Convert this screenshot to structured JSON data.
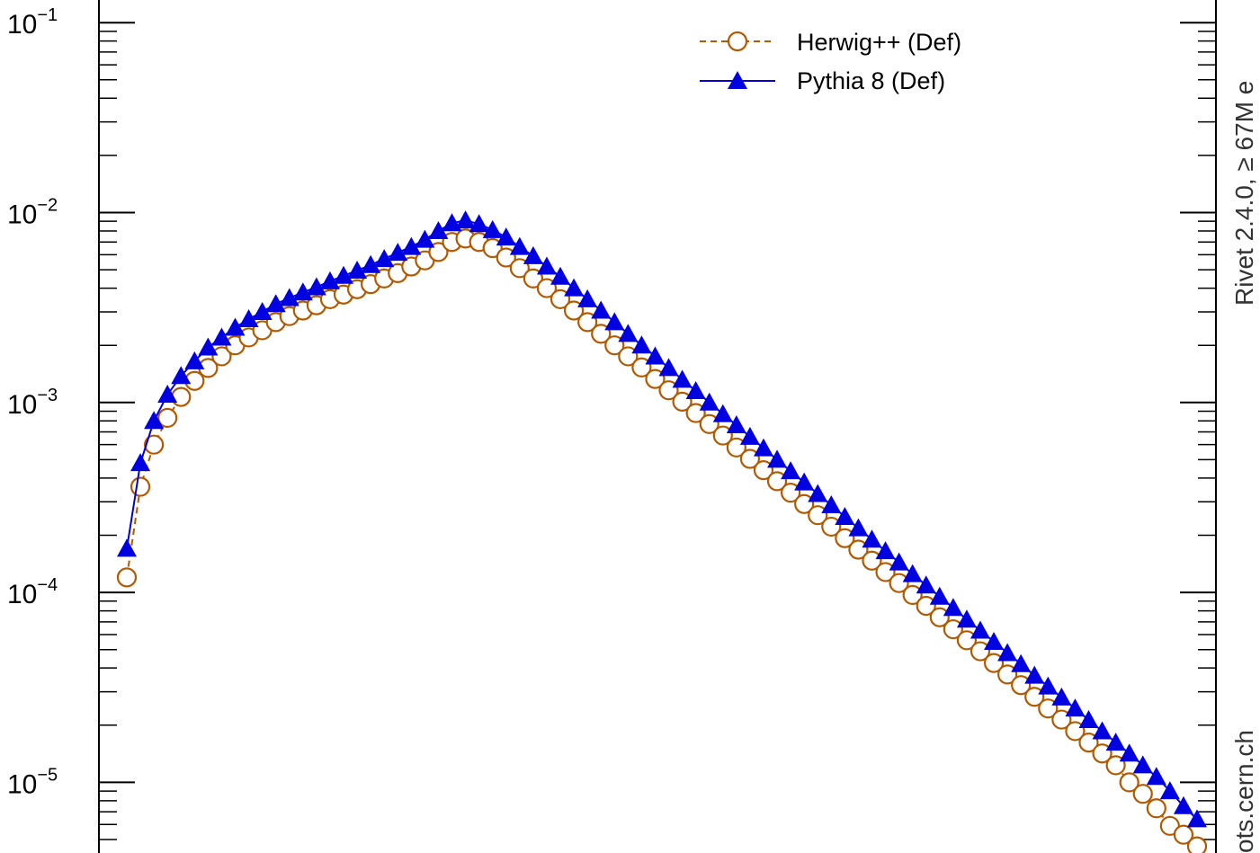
{
  "chart_data": {
    "type": "line",
    "scale": {
      "y": "log"
    },
    "ylim": [
      4.3e-06,
      0.16
    ],
    "y_ticks": [
      {
        "mantissa": "10",
        "exponent": "−1",
        "value": 0.1
      },
      {
        "mantissa": "10",
        "exponent": "−2",
        "value": 0.01
      },
      {
        "mantissa": "10",
        "exponent": "−3",
        "value": 0.001
      },
      {
        "mantissa": "10",
        "exponent": "−4",
        "value": 0.0001
      },
      {
        "mantissa": "10",
        "exponent": "−5",
        "value": 1e-05
      }
    ],
    "legend": {
      "placement": "top-right"
    },
    "series": [
      {
        "name": "Herwig++ (Def)",
        "color": "#b35900",
        "line_style": "dashed",
        "marker": "open-circle",
        "values": [
          0.00012,
          0.00036,
          0.0006,
          0.00083,
          0.00107,
          0.0013,
          0.00152,
          0.00175,
          0.002,
          0.0022,
          0.0024,
          0.00265,
          0.00285,
          0.00305,
          0.00325,
          0.0035,
          0.0037,
          0.00395,
          0.0042,
          0.0045,
          0.0048,
          0.0052,
          0.0056,
          0.0062,
          0.007,
          0.0073,
          0.007,
          0.0065,
          0.0058,
          0.0051,
          0.0045,
          0.004,
          0.0035,
          0.00305,
          0.00265,
          0.0023,
          0.002,
          0.00175,
          0.00153,
          0.00133,
          0.00116,
          0.00101,
          0.00088,
          0.00077,
          0.00067,
          0.00058,
          0.000505,
          0.00044,
          0.000385,
          0.000335,
          0.000292,
          0.000255,
          0.000222,
          0.000193,
          0.000168,
          0.000147,
          0.000128,
          0.000112,
          9.7e-05,
          8.5e-05,
          7.4e-05,
          6.4e-05,
          5.6e-05,
          4.9e-05,
          4.25e-05,
          3.7e-05,
          3.25e-05,
          2.82e-05,
          2.45e-05,
          2.14e-05,
          1.86e-05,
          1.62e-05,
          1.42e-05,
          1.23e-05,
          1e-05,
          8.7e-06,
          7.3e-06,
          5.9e-06,
          5.3e-06,
          4.6e-06
        ]
      },
      {
        "name": "Pythia 8 (Def)",
        "color": "#0000e0",
        "line_style": "solid",
        "marker": "filled-triangle",
        "values": [
          0.00017,
          0.00048,
          0.0008,
          0.0011,
          0.00138,
          0.00165,
          0.00195,
          0.0022,
          0.00248,
          0.00275,
          0.003,
          0.0033,
          0.00355,
          0.0038,
          0.00405,
          0.00435,
          0.00465,
          0.00495,
          0.0053,
          0.0057,
          0.00615,
          0.0066,
          0.0072,
          0.008,
          0.0088,
          0.0091,
          0.0087,
          0.0081,
          0.0074,
          0.0066,
          0.0059,
          0.0052,
          0.0046,
          0.004,
          0.0035,
          0.00305,
          0.00265,
          0.0023,
          0.002,
          0.00175,
          0.00152,
          0.00132,
          0.00115,
          0.001,
          0.00087,
          0.00076,
          0.00066,
          0.000575,
          0.0005,
          0.000435,
          0.00038,
          0.00033,
          0.000288,
          0.00025,
          0.000218,
          0.00019,
          0.000165,
          0.000144,
          0.000125,
          0.000109,
          9.5e-05,
          8.3e-05,
          7.2e-05,
          6.3e-05,
          5.5e-05,
          4.8e-05,
          4.2e-05,
          3.65e-05,
          3.2e-05,
          2.8e-05,
          2.45e-05,
          2.13e-05,
          1.86e-05,
          1.62e-05,
          1.42e-05,
          1.23e-05,
          1.07e-05,
          9e-06,
          7.5e-06,
          6.4e-06
        ]
      }
    ]
  },
  "side_texts": {
    "version": "Rivet 2.4.0,  ≥ 67M e",
    "site": "ots.cern.ch"
  }
}
